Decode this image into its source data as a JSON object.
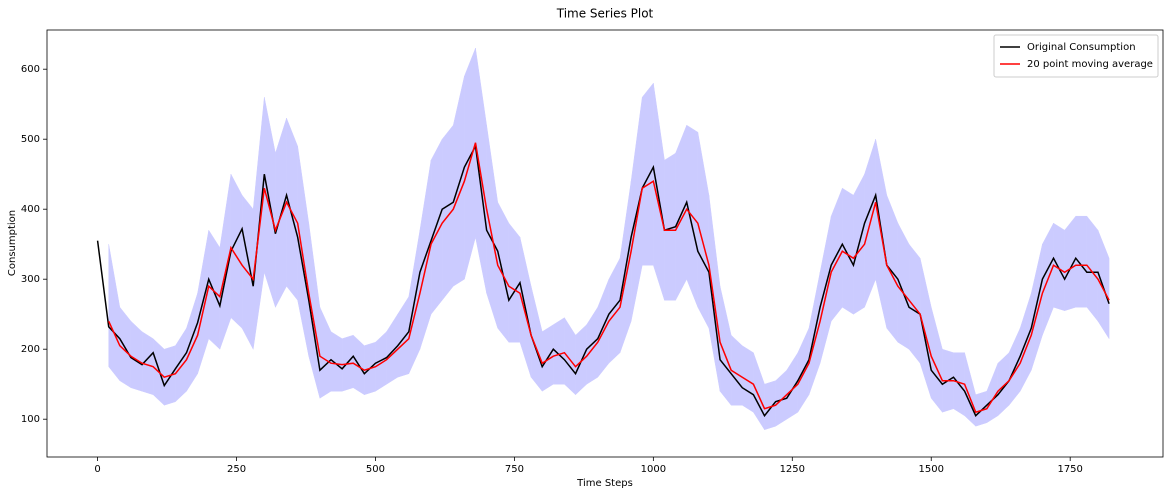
{
  "chart_data": {
    "type": "line",
    "title": "Time Series Plot",
    "x_label": "Time Steps",
    "y_label": "Consumption",
    "x": [
      0,
      20,
      40,
      60,
      80,
      100,
      120,
      140,
      160,
      180,
      200,
      220,
      240,
      260,
      280,
      300,
      320,
      340,
      360,
      380,
      400,
      420,
      440,
      460,
      480,
      500,
      520,
      540,
      560,
      580,
      600,
      620,
      640,
      660,
      680,
      700,
      720,
      740,
      760,
      780,
      800,
      820,
      840,
      860,
      880,
      900,
      920,
      940,
      960,
      980,
      1000,
      1020,
      1040,
      1060,
      1080,
      1100,
      1120,
      1140,
      1160,
      1180,
      1200,
      1220,
      1240,
      1260,
      1280,
      1300,
      1320,
      1340,
      1360,
      1380,
      1400,
      1420,
      1440,
      1460,
      1480,
      1500,
      1520,
      1540,
      1560,
      1580,
      1600,
      1620,
      1640,
      1660,
      1680,
      1700,
      1720,
      1740,
      1760,
      1780,
      1800,
      1820
    ],
    "series": [
      {
        "name": "Original Consumption",
        "color": "#000000",
        "values": [
          355,
          232,
          215,
          188,
          178,
          195,
          148,
          172,
          195,
          238,
          300,
          262,
          340,
          372,
          290,
          450,
          365,
          420,
          360,
          270,
          170,
          185,
          172,
          190,
          165,
          180,
          188,
          205,
          225,
          310,
          355,
          400,
          410,
          460,
          490,
          370,
          340,
          270,
          295,
          220,
          175,
          200,
          185,
          165,
          200,
          215,
          250,
          270,
          360,
          430,
          460,
          370,
          375,
          410,
          340,
          310,
          185,
          165,
          145,
          135,
          105,
          125,
          130,
          155,
          185,
          260,
          320,
          350,
          320,
          380,
          420,
          320,
          300,
          260,
          250,
          170,
          150,
          160,
          140,
          105,
          120,
          135,
          155,
          190,
          230,
          300,
          330,
          300,
          330,
          310,
          310,
          265
        ]
      },
      {
        "name": "20 point moving average",
        "color": "#ff0000",
        "values": [
          null,
          240,
          205,
          190,
          180,
          175,
          160,
          165,
          185,
          220,
          290,
          275,
          345,
          320,
          300,
          430,
          370,
          410,
          380,
          280,
          190,
          180,
          178,
          180,
          170,
          175,
          185,
          200,
          215,
          280,
          350,
          380,
          400,
          440,
          495,
          400,
          320,
          290,
          280,
          220,
          180,
          190,
          195,
          175,
          190,
          210,
          240,
          260,
          340,
          430,
          440,
          370,
          370,
          400,
          380,
          320,
          210,
          170,
          160,
          150,
          115,
          120,
          135,
          150,
          180,
          240,
          310,
          340,
          330,
          350,
          410,
          320,
          290,
          270,
          250,
          190,
          155,
          155,
          150,
          110,
          115,
          140,
          155,
          180,
          220,
          280,
          320,
          310,
          320,
          320,
          300,
          270
        ]
      }
    ],
    "band": {
      "color": "#0000ff",
      "lower": [
        null,
        175,
        155,
        145,
        140,
        135,
        120,
        125,
        140,
        165,
        215,
        200,
        245,
        230,
        200,
        310,
        260,
        290,
        270,
        190,
        130,
        140,
        140,
        145,
        135,
        140,
        150,
        160,
        165,
        200,
        250,
        270,
        290,
        300,
        360,
        280,
        230,
        210,
        210,
        160,
        140,
        150,
        150,
        135,
        150,
        160,
        180,
        195,
        240,
        320,
        320,
        270,
        270,
        300,
        260,
        230,
        140,
        120,
        120,
        110,
        85,
        90,
        100,
        110,
        135,
        180,
        240,
        260,
        250,
        260,
        300,
        230,
        210,
        200,
        180,
        130,
        110,
        115,
        105,
        90,
        95,
        105,
        120,
        140,
        170,
        220,
        260,
        255,
        260,
        260,
        240,
        215
      ],
      "upper": [
        null,
        350,
        260,
        240,
        225,
        215,
        200,
        205,
        230,
        280,
        370,
        345,
        450,
        420,
        400,
        560,
        480,
        530,
        490,
        380,
        260,
        225,
        215,
        220,
        205,
        210,
        225,
        250,
        275,
        370,
        470,
        500,
        520,
        590,
        630,
        520,
        410,
        380,
        360,
        290,
        225,
        235,
        245,
        220,
        235,
        260,
        300,
        330,
        440,
        560,
        580,
        470,
        480,
        520,
        510,
        420,
        290,
        220,
        205,
        195,
        150,
        155,
        170,
        195,
        230,
        310,
        390,
        430,
        420,
        450,
        500,
        420,
        380,
        350,
        330,
        260,
        200,
        195,
        195,
        135,
        140,
        180,
        195,
        230,
        280,
        350,
        380,
        370,
        390,
        390,
        370,
        330
      ]
    },
    "xlim": [
      -91,
      1917
    ],
    "ylim": [
      46,
      656
    ],
    "xticks": [
      0,
      250,
      500,
      750,
      1000,
      1250,
      1500,
      1750
    ],
    "yticks": [
      100,
      200,
      300,
      400,
      500,
      600
    ],
    "legend": "upper right"
  }
}
